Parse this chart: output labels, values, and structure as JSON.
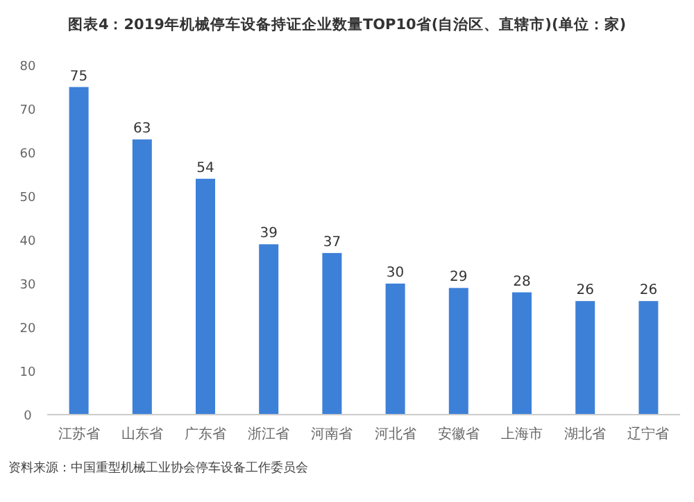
{
  "chart_data": {
    "type": "bar",
    "title": "图表4：2019年机械停车设备持证企业数量TOP10省(自治区、直辖市)(单位：家)",
    "categories": [
      "江苏省",
      "山东省",
      "广东省",
      "浙江省",
      "河南省",
      "河北省",
      "安徽省",
      "上海市",
      "湖北省",
      "辽宁省"
    ],
    "values": [
      75,
      63,
      54,
      39,
      37,
      30,
      29,
      28,
      26,
      26
    ],
    "color": "#3d80d8",
    "ylim": [
      0,
      80
    ],
    "yticks": [
      0,
      10,
      20,
      30,
      40,
      50,
      60,
      70,
      80
    ],
    "grid": false,
    "data_labels": true,
    "annotations": [
      "资料来源：中国重型机械工业协会停车设备工作委员会"
    ]
  }
}
